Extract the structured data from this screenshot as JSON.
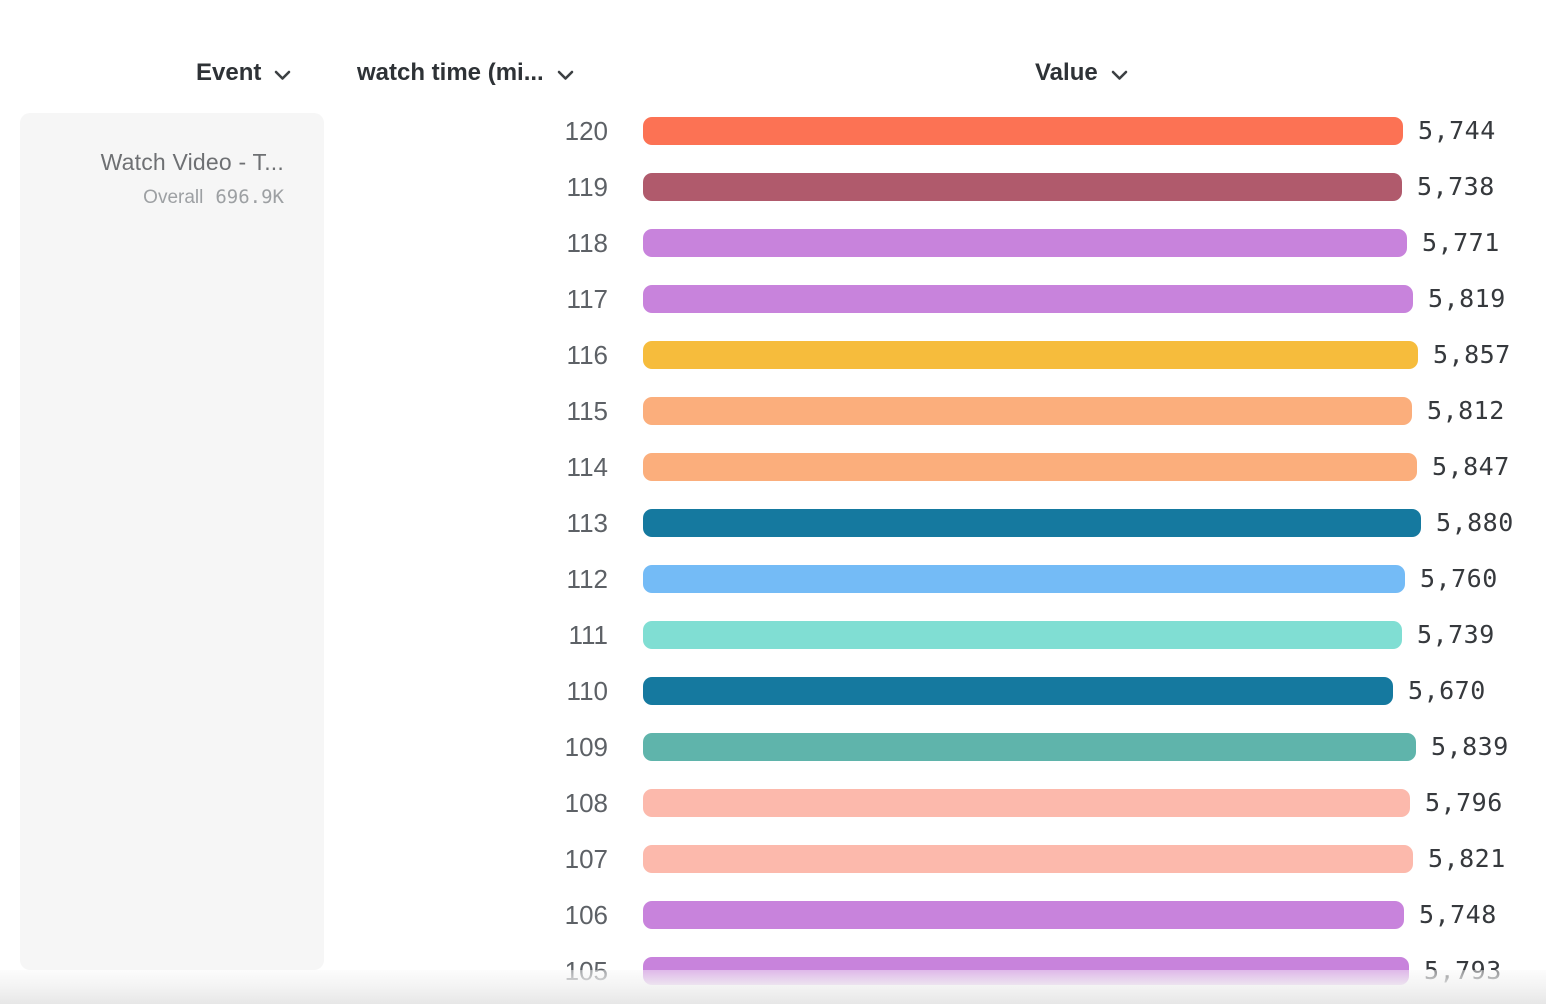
{
  "columns": {
    "event": "Event",
    "watch_time": "watch time (mi...",
    "value": "Value"
  },
  "event_card": {
    "title": "Watch Video - T...",
    "metric_label": "Overall",
    "metric_value": "696.9K"
  },
  "chart_data": {
    "type": "bar",
    "orientation": "horizontal",
    "xlabel": "Value",
    "ylabel": "watch time (mi...",
    "xlim": [
      0,
      5880
    ],
    "grid": false,
    "legend_position": "left",
    "categories": [
      "120",
      "119",
      "118",
      "117",
      "116",
      "115",
      "114",
      "113",
      "112",
      "111",
      "110",
      "109",
      "108",
      "107",
      "106",
      "105"
    ],
    "values": [
      5744,
      5738,
      5771,
      5819,
      5857,
      5812,
      5847,
      5880,
      5760,
      5739,
      5670,
      5839,
      5796,
      5821,
      5748,
      5793
    ],
    "value_labels": [
      "5,744",
      "5,738",
      "5,771",
      "5,819",
      "5,857",
      "5,812",
      "5,847",
      "5,880",
      "5,760",
      "5,739",
      "5,670",
      "5,839",
      "5,796",
      "5,821",
      "5,748",
      "5,793"
    ],
    "bar_colors": [
      "#FC7254",
      "#B05A6C",
      "#C883DC",
      "#C883DC",
      "#F6BC3C",
      "#FBAE7C",
      "#FBAE7C",
      "#15799F",
      "#74BBF6",
      "#80DED3",
      "#15799F",
      "#5FB4AB",
      "#FCB9AC",
      "#FCB9AC",
      "#C883DC",
      "#C883DC"
    ],
    "series_name": "Watch Video - T...",
    "series_overall_label": "Overall",
    "series_overall_value": "696.9K"
  },
  "icon_colors": {
    "chevron": "#3c4043"
  }
}
